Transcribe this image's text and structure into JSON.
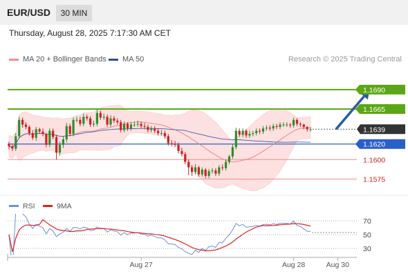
{
  "header": {
    "symbol": "EUR/USD",
    "timeframe": "30 MIN",
    "datetime": "Thursday, August 28, 2025 7:17:30 AM CET"
  },
  "legend": {
    "ma20_label": "MA 20 + Bollinger Bands",
    "ma50_label": "MA 50",
    "credit": "Research © 2025 Trading Central"
  },
  "colors": {
    "up": "#2e8b2e",
    "down": "#cc2222",
    "ma20": "#e58080",
    "ma50": "#3a5fa8",
    "bands_fill": "#fde0e0",
    "resistance": "#5aa614",
    "support": "#2a5fc9",
    "minor_level": "#ef8c8c",
    "arrow": "#2c5aa0",
    "rsi": "#6b8fd8",
    "rsi_ma": "#e02020"
  },
  "chart_data": [
    {
      "type": "candlestick",
      "title": "EUR/USD 30 MIN",
      "ylim": [
        1.1555,
        1.172
      ],
      "x_ticks": [
        {
          "index": 39,
          "label": "Aug 27"
        },
        {
          "index": 84,
          "label": "Aug 28"
        },
        {
          "index": 97,
          "label": "Aug 30"
        }
      ],
      "levels": [
        {
          "value": 1.169,
          "label": "1.1690",
          "style": "resistance"
        },
        {
          "value": 1.1665,
          "label": "1.1665",
          "style": "resistance"
        },
        {
          "value": 1.1639,
          "label": "1.1639",
          "style": "current"
        },
        {
          "value": 1.162,
          "label": "1.1620",
          "style": "support"
        },
        {
          "value": 1.16,
          "label": "1.1600",
          "style": "minor"
        },
        {
          "value": 1.1575,
          "label": "1.1575",
          "style": "minor"
        }
      ],
      "forecast_arrow": {
        "from_index": 96.5,
        "from_value": 1.1639,
        "to_index": 106.5,
        "to_value": 1.169
      },
      "candles": {
        "open": [
          1.162,
          1.1617,
          1.1614,
          1.163,
          1.1651,
          1.1645,
          1.1642,
          1.1634,
          1.1628,
          1.1639,
          1.1636,
          1.1633,
          1.1619,
          1.1637,
          1.1629,
          1.1609,
          1.1619,
          1.1626,
          1.1643,
          1.1633,
          1.1651,
          1.1651,
          1.1646,
          1.1655,
          1.1653,
          1.1645,
          1.1646,
          1.166,
          1.1654,
          1.1655,
          1.1645,
          1.1653,
          1.165,
          1.1648,
          1.1638,
          1.1646,
          1.164,
          1.1645,
          1.1645,
          1.1646,
          1.1643,
          1.1642,
          1.1638,
          1.164,
          1.1637,
          1.1634,
          1.1634,
          1.163,
          1.1621,
          1.162,
          1.1619,
          1.1611,
          1.1607,
          1.1597,
          1.159,
          1.1584,
          1.159,
          1.1581,
          1.1587,
          1.1579,
          1.1585,
          1.1586,
          1.1582,
          1.159,
          1.1589,
          1.1597,
          1.1604,
          1.1616,
          1.1637,
          1.1632,
          1.1637,
          1.1631,
          1.1633,
          1.1634,
          1.1637,
          1.1636,
          1.164,
          1.1641,
          1.164,
          1.1643,
          1.1642,
          1.1645,
          1.1645,
          1.1645,
          1.1644,
          1.1651,
          1.1646,
          1.1645,
          1.1642,
          1.1639
        ],
        "close": [
          1.1617,
          1.1614,
          1.163,
          1.1651,
          1.1645,
          1.1642,
          1.1634,
          1.1628,
          1.1639,
          1.1636,
          1.1633,
          1.1619,
          1.1637,
          1.1629,
          1.1609,
          1.1619,
          1.1626,
          1.1643,
          1.1633,
          1.1651,
          1.1651,
          1.1646,
          1.1655,
          1.1653,
          1.1645,
          1.1646,
          1.166,
          1.1654,
          1.1655,
          1.1645,
          1.1653,
          1.165,
          1.1648,
          1.1638,
          1.1646,
          1.164,
          1.1645,
          1.1645,
          1.1646,
          1.1643,
          1.1642,
          1.1638,
          1.164,
          1.1637,
          1.1634,
          1.1634,
          1.163,
          1.1621,
          1.162,
          1.1619,
          1.1611,
          1.1607,
          1.1597,
          1.159,
          1.1584,
          1.159,
          1.1581,
          1.1587,
          1.1579,
          1.1585,
          1.1586,
          1.1582,
          1.159,
          1.1589,
          1.1597,
          1.1604,
          1.1616,
          1.1637,
          1.1632,
          1.1637,
          1.1631,
          1.1633,
          1.1634,
          1.1637,
          1.1636,
          1.164,
          1.1641,
          1.164,
          1.1643,
          1.1642,
          1.1645,
          1.1645,
          1.1645,
          1.1644,
          1.1651,
          1.1646,
          1.1645,
          1.1642,
          1.1639,
          1.1639
        ],
        "high": [
          1.1623,
          1.162,
          1.1634,
          1.1655,
          1.1654,
          1.1648,
          1.1644,
          1.1638,
          1.1642,
          1.1641,
          1.164,
          1.1635,
          1.164,
          1.164,
          1.1632,
          1.1623,
          1.163,
          1.1647,
          1.1646,
          1.1654,
          1.1655,
          1.1655,
          1.1659,
          1.1658,
          1.1656,
          1.165,
          1.1664,
          1.1663,
          1.1659,
          1.1658,
          1.1657,
          1.1656,
          1.1653,
          1.1651,
          1.1649,
          1.1648,
          1.1648,
          1.1649,
          1.165,
          1.1649,
          1.1647,
          1.1645,
          1.1643,
          1.1643,
          1.164,
          1.1638,
          1.1637,
          1.1633,
          1.1625,
          1.1624,
          1.1622,
          1.1615,
          1.161,
          1.16,
          1.1593,
          1.1594,
          1.1592,
          1.159,
          1.1589,
          1.1588,
          1.1589,
          1.1589,
          1.1593,
          1.1594,
          1.16,
          1.1606,
          1.162,
          1.1641,
          1.164,
          1.164,
          1.1639,
          1.1637,
          1.1637,
          1.164,
          1.164,
          1.1643,
          1.1644,
          1.1644,
          1.1646,
          1.1646,
          1.1648,
          1.1648,
          1.1648,
          1.1647,
          1.1654,
          1.1653,
          1.1648,
          1.1646,
          1.1643,
          1.1642
        ],
        "low": [
          1.1613,
          1.1611,
          1.1611,
          1.1627,
          1.1641,
          1.1639,
          1.1631,
          1.1625,
          1.1624,
          1.1633,
          1.163,
          1.1616,
          1.1616,
          1.1626,
          1.16,
          1.1605,
          1.1615,
          1.1622,
          1.163,
          1.163,
          1.1648,
          1.1643,
          1.1643,
          1.165,
          1.1642,
          1.1642,
          1.1643,
          1.1651,
          1.1651,
          1.1642,
          1.1642,
          1.1647,
          1.1645,
          1.1635,
          1.1635,
          1.1637,
          1.1637,
          1.1642,
          1.1642,
          1.164,
          1.1639,
          1.1635,
          1.1635,
          1.1634,
          1.1631,
          1.1631,
          1.1627,
          1.1618,
          1.1617,
          1.1616,
          1.1608,
          1.1604,
          1.1594,
          1.158,
          1.1579,
          1.1581,
          1.1578,
          1.1578,
          1.1576,
          1.1576,
          1.1582,
          1.1579,
          1.1579,
          1.1586,
          1.1586,
          1.1594,
          1.1601,
          1.1613,
          1.1629,
          1.1629,
          1.1628,
          1.1628,
          1.163,
          1.1631,
          1.1633,
          1.1633,
          1.1637,
          1.1637,
          1.1637,
          1.1639,
          1.1639,
          1.1642,
          1.1642,
          1.1641,
          1.1641,
          1.1643,
          1.1642,
          1.1639,
          1.1636,
          1.1636
        ]
      },
      "indicators": {
        "ma20": "moving average of close, period 20",
        "bollinger": "MA20 ± 2 standard deviations",
        "ma50": "moving average of close, period 50"
      }
    },
    {
      "type": "line",
      "title": "RSI",
      "ylim": [
        20,
        80
      ],
      "y_ticks": [
        70,
        50,
        30
      ],
      "series": [
        {
          "name": "RSI",
          "period": 14
        },
        {
          "name": "9MA",
          "of": "RSI",
          "period": 9
        }
      ],
      "last_rsi": 53
    }
  ]
}
